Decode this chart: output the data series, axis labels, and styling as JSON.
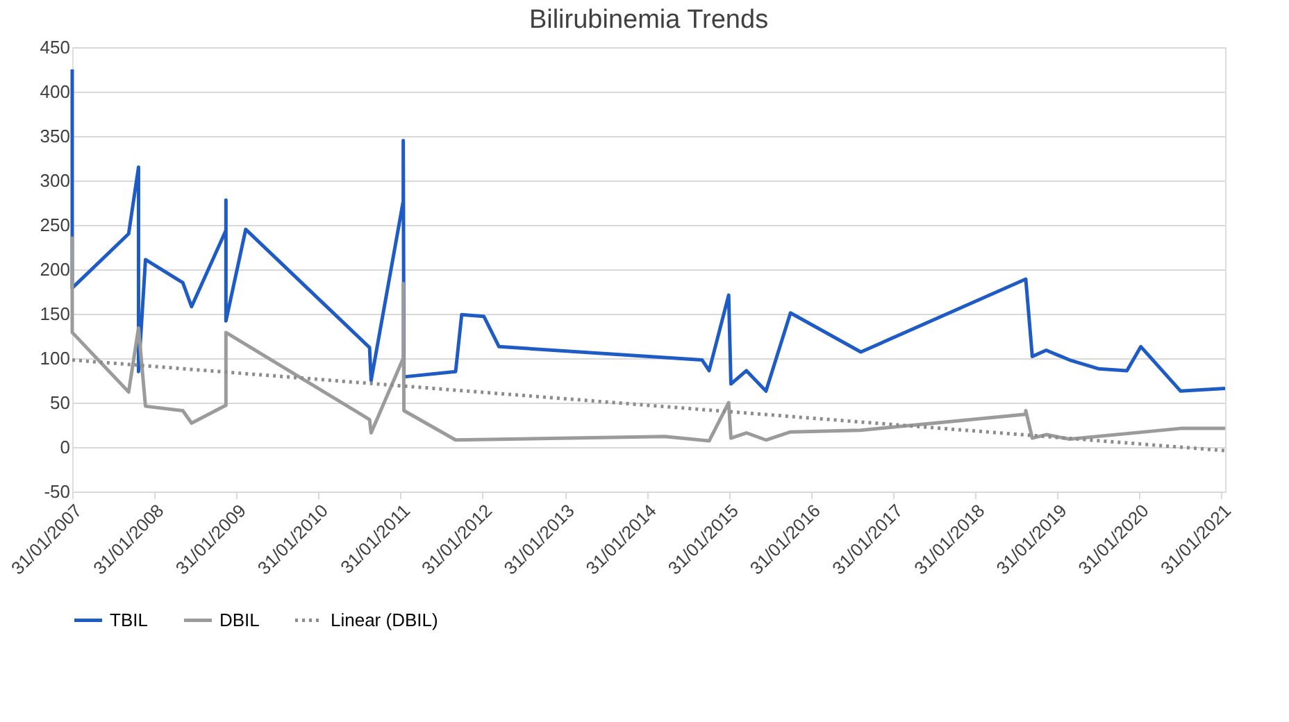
{
  "chart_data": {
    "type": "line",
    "title": "Bilirubinemia Trends",
    "x": [
      "2007-01-31",
      "2007-01-31",
      "2007-10-09",
      "2007-11-22",
      "2007-11-22",
      "2007-12-23",
      "2008-06-06",
      "2008-07-15",
      "2008-12-15",
      "2008-12-15",
      "2008-12-15",
      "2009-03-13",
      "2010-09-15",
      "2010-09-22",
      "2011-02-12",
      "2011-02-12",
      "2011-02-15",
      "2011-10-03",
      "2011-10-30",
      "2012-02-06",
      "2012-04-13",
      "2014-10-04",
      "2014-11-04",
      "2015-01-30",
      "2015-02-09",
      "2015-04-19",
      "2015-07-15",
      "2015-11-01",
      "2016-09-09",
      "2018-09-13",
      "2018-10-12",
      "2018-12-13",
      "2019-03-27",
      "2019-08-05",
      "2019-12-07",
      "2020-02-07",
      "2020-08-02",
      "2021-02-16"
    ],
    "series": [
      {
        "name": "TBIL",
        "color": "#1f5bc4",
        "line_style": "solid",
        "values": [
          425,
          179,
          240,
          315,
          85,
          211,
          185,
          158,
          244,
          278,
          142,
          245,
          112,
          75,
          277,
          345,
          79,
          85,
          149,
          147,
          113,
          98,
          86,
          171,
          71,
          86,
          63,
          151,
          107,
          189,
          102,
          109,
          98,
          88,
          86,
          113,
          63,
          66
        ]
      },
      {
        "name": "DBIL",
        "color": "#9b9b9b",
        "line_style": "solid",
        "x": [
          "2007-01-31",
          "2007-01-31",
          "2007-10-09",
          "2007-11-22",
          "2007-12-23",
          "2008-06-06",
          "2008-07-15",
          "2008-12-15",
          "2008-12-15",
          "2010-09-15",
          "2010-09-22",
          "2011-02-12",
          "2011-02-12",
          "2011-02-15",
          "2011-10-03",
          "2014-04-21",
          "2014-11-04",
          "2015-01-30",
          "2015-02-09",
          "2015-04-19",
          "2015-07-15",
          "2015-11-01",
          "2016-09-09",
          "2018-09-13",
          "2018-09-13",
          "2018-10-12",
          "2018-12-13",
          "2019-03-27",
          "2020-08-02",
          "2021-02-16"
        ],
        "values": [
          237,
          129,
          62,
          134,
          46,
          41,
          27,
          47,
          129,
          31,
          16,
          100,
          184,
          41,
          8,
          12,
          7,
          50,
          10,
          16,
          8,
          17,
          19,
          37,
          41,
          10,
          14,
          9,
          21,
          21
        ]
      },
      {
        "name": "Linear (DBIL)",
        "type": "line",
        "color": "#8c8c8c",
        "line_style": "dotted",
        "x": [
          "2007-01-31",
          "2021-02-16"
        ],
        "values": [
          98,
          -4
        ]
      }
    ],
    "xlim": [
      "2007-01-31",
      "2021-02-16"
    ],
    "xticks": [
      {
        "value": "2007-01-31",
        "label": "31/01/2007"
      },
      {
        "value": "2008-01-31",
        "label": "31/01/2008"
      },
      {
        "value": "2009-01-31",
        "label": "31/01/2009"
      },
      {
        "value": "2010-01-31",
        "label": "31/01/2010"
      },
      {
        "value": "2011-01-31",
        "label": "31/01/2011"
      },
      {
        "value": "2012-01-31",
        "label": "31/01/2012"
      },
      {
        "value": "2013-01-31",
        "label": "31/01/2013"
      },
      {
        "value": "2014-01-31",
        "label": "31/01/2014"
      },
      {
        "value": "2015-01-31",
        "label": "31/01/2015"
      },
      {
        "value": "2016-01-31",
        "label": "31/01/2016"
      },
      {
        "value": "2017-01-31",
        "label": "31/01/2017"
      },
      {
        "value": "2018-01-31",
        "label": "31/01/2018"
      },
      {
        "value": "2019-01-31",
        "label": "31/01/2019"
      },
      {
        "value": "2020-01-31",
        "label": "31/01/2020"
      },
      {
        "value": "2021-01-31",
        "label": "31/01/2021"
      }
    ],
    "ylim": [
      -50,
      450
    ],
    "yticks": [
      -50,
      0,
      50,
      100,
      150,
      200,
      250,
      300,
      350,
      400,
      450
    ],
    "grid": "y",
    "legend": "bottom",
    "marker": "none"
  }
}
